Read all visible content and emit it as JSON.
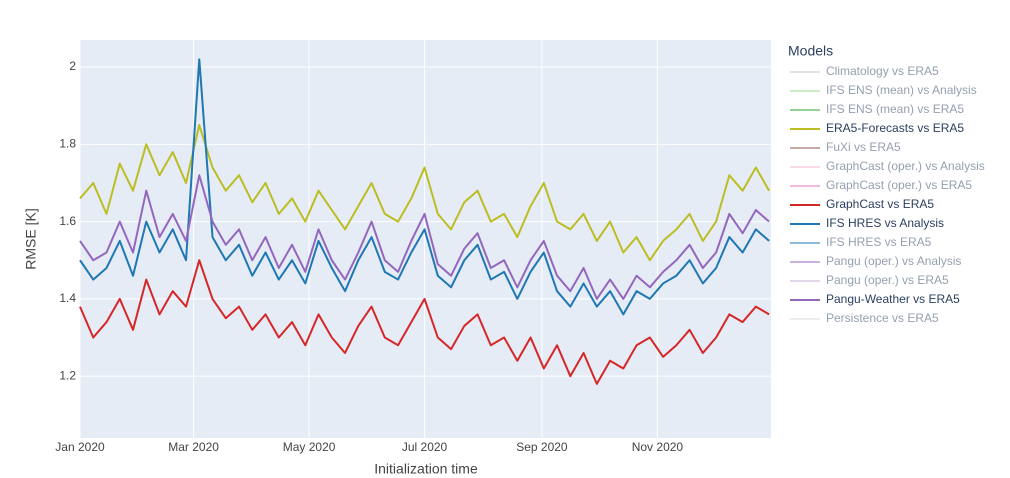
{
  "chart_data": {
    "type": "line",
    "xlabel": "Initialization time",
    "ylabel": "RMSE [K]",
    "legend_title": "Models",
    "xlim": [
      0,
      365
    ],
    "xticks": [
      {
        "value": 0,
        "label": "Jan 2020"
      },
      {
        "value": 60,
        "label": "Mar 2020"
      },
      {
        "value": 121,
        "label": "May 2020"
      },
      {
        "value": 182,
        "label": "Jul 2020"
      },
      {
        "value": 244,
        "label": "Sep 2020"
      },
      {
        "value": 305,
        "label": "Nov 2020"
      }
    ],
    "ylim": [
      1.04,
      2.07
    ],
    "yticks": [
      1.2,
      1.4,
      1.6,
      1.8,
      2
    ],
    "grid": true,
    "legend": "right",
    "x": [
      0,
      7,
      14,
      21,
      28,
      35,
      42,
      49,
      56,
      63,
      70,
      77,
      84,
      91,
      98,
      105,
      112,
      119,
      126,
      133,
      140,
      147,
      154,
      161,
      168,
      175,
      182,
      189,
      196,
      203,
      210,
      217,
      224,
      231,
      238,
      245,
      252,
      259,
      266,
      273,
      280,
      287,
      294,
      301,
      308,
      315,
      322,
      329,
      336,
      343,
      350,
      357,
      364
    ],
    "series": [
      {
        "name": "Climatology vs ERA5",
        "color": "#c8c8c8",
        "visible": false
      },
      {
        "name": "IFS ENS (mean) vs Analysis",
        "color": "#98df8a",
        "visible": false
      },
      {
        "name": "IFS ENS (mean) vs ERA5",
        "color": "#2ca02c",
        "visible": false
      },
      {
        "name": "ERA5-Forecasts vs ERA5",
        "color": "#bcbd22",
        "visible": true,
        "values": [
          1.66,
          1.7,
          1.62,
          1.75,
          1.68,
          1.8,
          1.72,
          1.78,
          1.7,
          1.85,
          1.74,
          1.68,
          1.72,
          1.65,
          1.7,
          1.62,
          1.66,
          1.6,
          1.68,
          1.63,
          1.58,
          1.64,
          1.7,
          1.62,
          1.6,
          1.66,
          1.74,
          1.62,
          1.58,
          1.65,
          1.68,
          1.6,
          1.62,
          1.56,
          1.64,
          1.7,
          1.6,
          1.58,
          1.62,
          1.55,
          1.6,
          1.52,
          1.56,
          1.5,
          1.55,
          1.58,
          1.62,
          1.55,
          1.6,
          1.72,
          1.68,
          1.74,
          1.68
        ]
      },
      {
        "name": "FuXi vs ERA5",
        "color": "#8c564b",
        "visible": false
      },
      {
        "name": "GraphCast (oper.) vs Analysis",
        "color": "#f7b6d2",
        "visible": false
      },
      {
        "name": "GraphCast (oper.) vs ERA5",
        "color": "#e377c2",
        "visible": false
      },
      {
        "name": "GraphCast vs ERA5",
        "color": "#d62728",
        "visible": true,
        "values": [
          1.38,
          1.3,
          1.34,
          1.4,
          1.32,
          1.45,
          1.36,
          1.42,
          1.38,
          1.5,
          1.4,
          1.35,
          1.38,
          1.32,
          1.36,
          1.3,
          1.34,
          1.28,
          1.36,
          1.3,
          1.26,
          1.33,
          1.38,
          1.3,
          1.28,
          1.34,
          1.4,
          1.3,
          1.27,
          1.33,
          1.36,
          1.28,
          1.3,
          1.24,
          1.3,
          1.22,
          1.28,
          1.2,
          1.26,
          1.18,
          1.24,
          1.22,
          1.28,
          1.3,
          1.25,
          1.28,
          1.32,
          1.26,
          1.3,
          1.36,
          1.34,
          1.38,
          1.36
        ]
      },
      {
        "name": "IFS HRES vs Analysis",
        "color": "#1f77b4",
        "visible": true,
        "values": [
          1.5,
          1.45,
          1.48,
          1.55,
          1.46,
          1.6,
          1.52,
          1.58,
          1.5,
          2.02,
          1.56,
          1.5,
          1.54,
          1.46,
          1.52,
          1.45,
          1.5,
          1.44,
          1.55,
          1.48,
          1.42,
          1.5,
          1.56,
          1.47,
          1.45,
          1.52,
          1.58,
          1.46,
          1.43,
          1.5,
          1.54,
          1.45,
          1.47,
          1.4,
          1.47,
          1.52,
          1.42,
          1.38,
          1.44,
          1.38,
          1.42,
          1.36,
          1.42,
          1.4,
          1.44,
          1.46,
          1.5,
          1.44,
          1.48,
          1.56,
          1.52,
          1.58,
          1.55
        ]
      },
      {
        "name": "IFS HRES vs ERA5",
        "color": "#1f77b4",
        "visible": false
      },
      {
        "name": "Pangu (oper.) vs Analysis",
        "color": "#9467bd",
        "visible": false
      },
      {
        "name": "Pangu (oper.) vs ERA5",
        "color": "#c5b0d5",
        "visible": false
      },
      {
        "name": "Pangu-Weather vs ERA5",
        "color": "#9467bd",
        "visible": true,
        "values": [
          1.55,
          1.5,
          1.52,
          1.6,
          1.52,
          1.68,
          1.56,
          1.62,
          1.55,
          1.72,
          1.6,
          1.54,
          1.58,
          1.5,
          1.56,
          1.48,
          1.54,
          1.47,
          1.58,
          1.5,
          1.45,
          1.52,
          1.6,
          1.5,
          1.47,
          1.55,
          1.62,
          1.49,
          1.46,
          1.53,
          1.57,
          1.48,
          1.5,
          1.43,
          1.5,
          1.55,
          1.46,
          1.42,
          1.48,
          1.4,
          1.45,
          1.4,
          1.46,
          1.43,
          1.47,
          1.5,
          1.54,
          1.48,
          1.52,
          1.62,
          1.57,
          1.63,
          1.6
        ]
      },
      {
        "name": "Persistence vs ERA5",
        "color": "#dddddd",
        "visible": false
      }
    ]
  }
}
